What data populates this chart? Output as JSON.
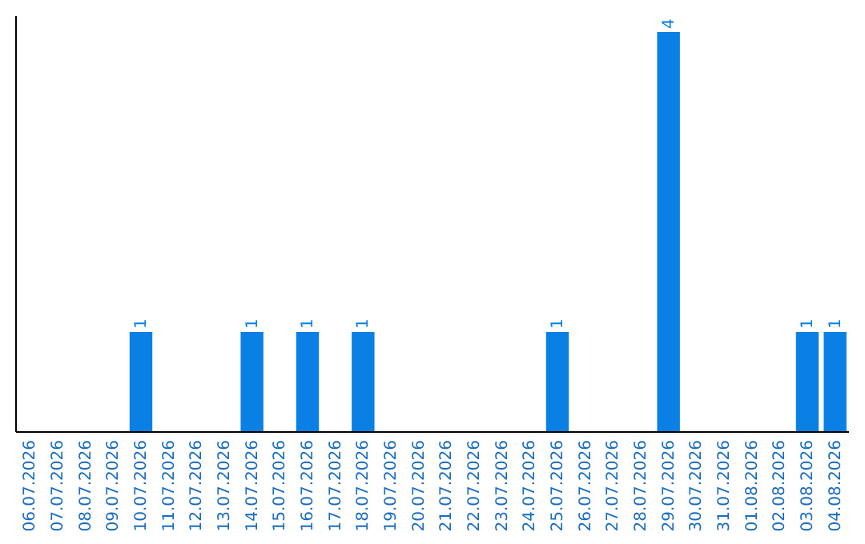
{
  "chart_data": {
    "type": "bar",
    "categories": [
      "06.07.2026",
      "07.07.2026",
      "08.07.2026",
      "09.07.2026",
      "10.07.2026",
      "11.07.2026",
      "12.07.2026",
      "13.07.2026",
      "14.07.2026",
      "15.07.2026",
      "16.07.2026",
      "17.07.2026",
      "18.07.2026",
      "19.07.2026",
      "20.07.2026",
      "21.07.2026",
      "22.07.2026",
      "23.07.2026",
      "24.07.2026",
      "25.07.2026",
      "26.07.2026",
      "27.07.2026",
      "28.07.2026",
      "29.07.2026",
      "30.07.2026",
      "31.07.2026",
      "01.08.2026",
      "02.08.2026",
      "03.08.2026",
      "04.08.2026"
    ],
    "values": [
      0,
      0,
      0,
      0,
      1,
      0,
      0,
      0,
      1,
      0,
      1,
      0,
      1,
      0,
      0,
      0,
      0,
      0,
      0,
      1,
      0,
      0,
      0,
      4,
      0,
      0,
      0,
      0,
      1,
      1
    ],
    "value_labels": [
      null,
      null,
      null,
      null,
      "1",
      null,
      null,
      null,
      "1",
      null,
      "1",
      null,
      "1",
      null,
      null,
      null,
      null,
      null,
      null,
      "1",
      null,
      null,
      null,
      "4",
      null,
      null,
      null,
      null,
      "1",
      "1"
    ],
    "color": "#0a80e4"
  }
}
